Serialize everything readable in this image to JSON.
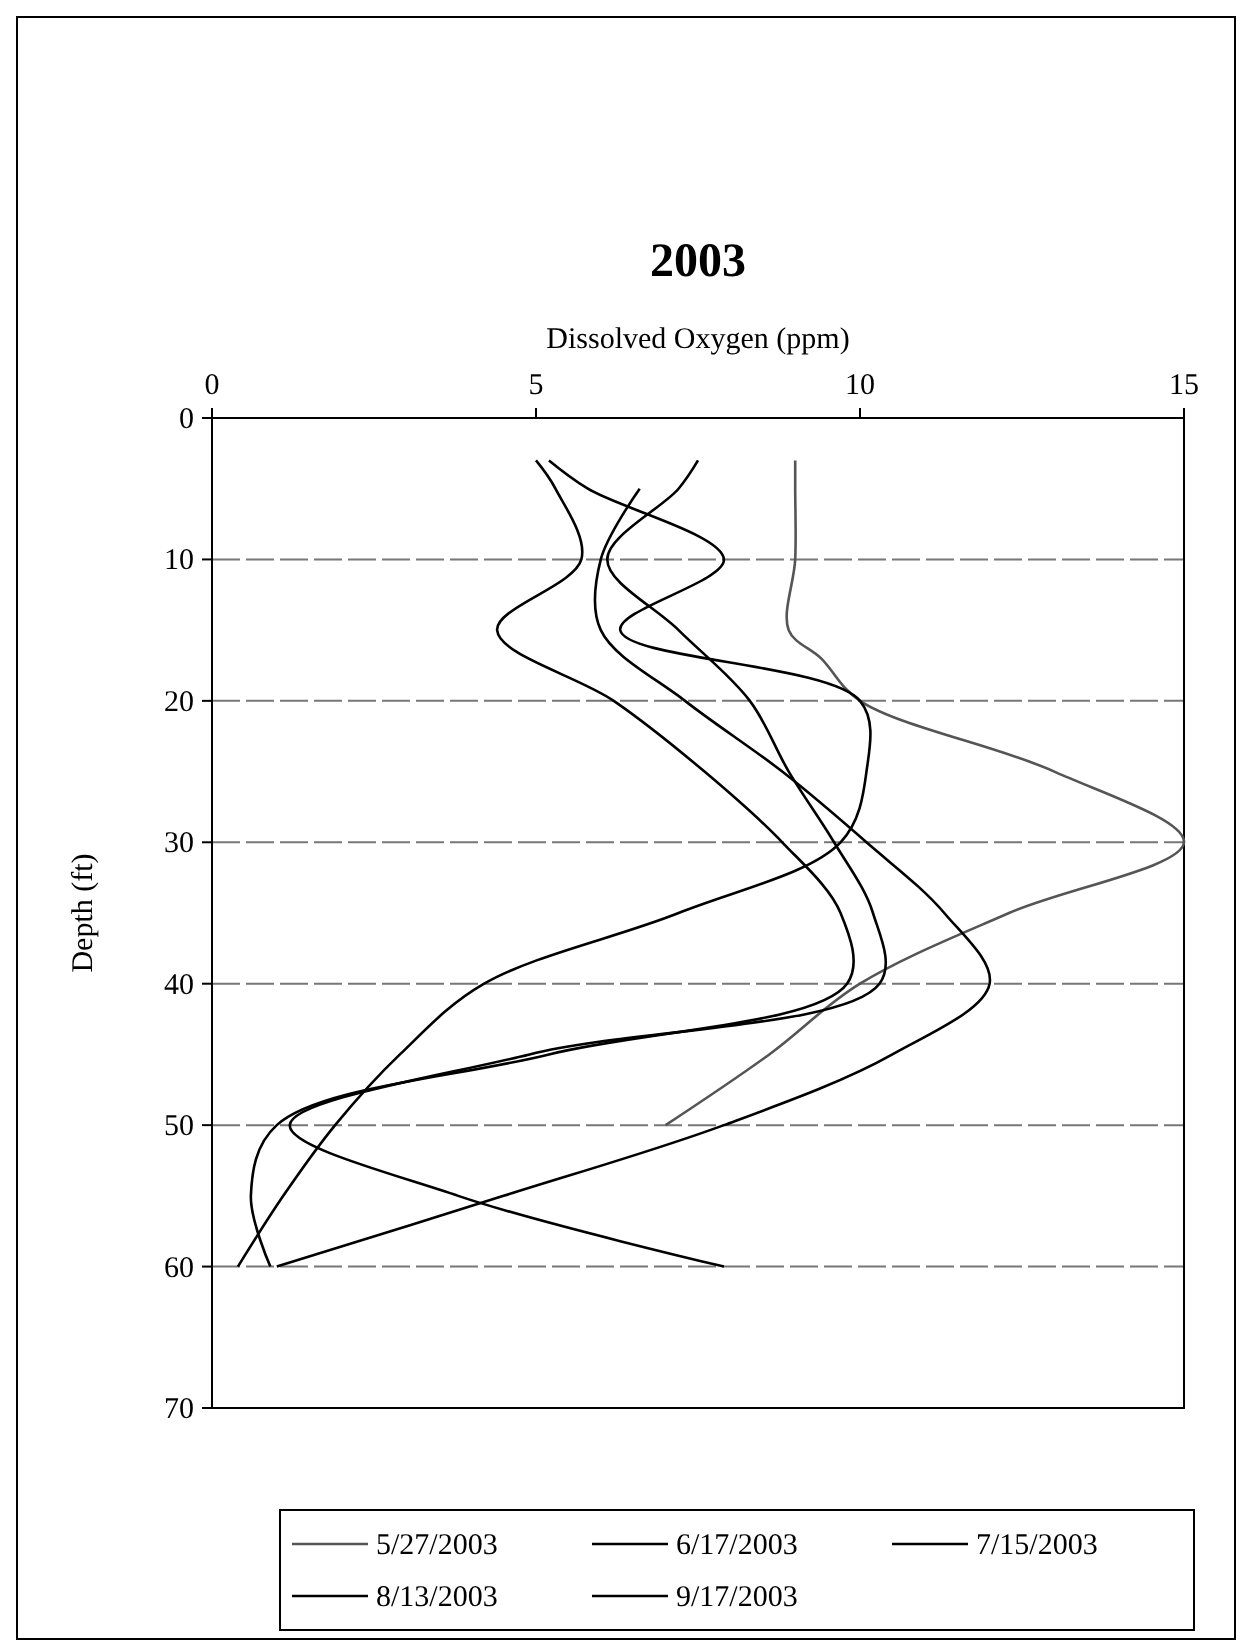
{
  "chart_data": {
    "type": "line",
    "title": "2003",
    "xlabel": "Dissolved Oxygen (ppm)",
    "ylabel": "Depth (ft)",
    "xlim": [
      0,
      15
    ],
    "xticks": [
      0,
      5,
      10,
      15
    ],
    "ylim": [
      70,
      0
    ],
    "yticks": [
      0,
      10,
      20,
      30,
      40,
      50,
      60,
      70
    ],
    "grid": "y",
    "legend": "bottom",
    "marker": "none",
    "line_style": "solid",
    "series": [
      {
        "name": "5/27/2003",
        "color": "#555555",
        "x": [
          9.0,
          9.0,
          9.0,
          8.9,
          9.4,
          10.0,
          13.0,
          15.0,
          12.3,
          10.0,
          8.6,
          7.0
        ],
        "values": [
          3,
          5,
          10,
          15,
          17,
          20,
          25,
          30,
          35,
          40,
          45,
          50
        ]
      },
      {
        "name": "6/17/2003",
        "color": "#000000",
        "x": [
          5.0,
          5.3,
          5.7,
          4.4,
          6.2,
          7.6,
          8.8,
          9.7,
          9.8,
          5.2,
          1.0,
          0.6,
          0.9
        ],
        "values": [
          3,
          5,
          10,
          15,
          20,
          25,
          30,
          35,
          40,
          45,
          50,
          55,
          60
        ]
      },
      {
        "name": "7/15/2003",
        "color": "#000000",
        "x": [
          7.5,
          7.2,
          6.1,
          7.2,
          8.3,
          8.9,
          9.6,
          10.2,
          10.3,
          4.9,
          1.2,
          3.8,
          7.9
        ],
        "values": [
          3,
          5,
          10,
          15,
          20,
          25,
          30,
          35,
          40,
          45,
          50,
          55,
          60
        ]
      },
      {
        "name": "8/13/2003",
        "color": "#000000",
        "x": [
          6.6,
          6.0,
          6.0,
          7.3,
          8.8,
          10.1,
          11.3,
          12.0,
          10.5,
          7.9,
          4.5,
          1.0
        ],
        "values": [
          5,
          10,
          15,
          20,
          25,
          30,
          35,
          40,
          45,
          50,
          55,
          60
        ]
      },
      {
        "name": "9/17/2003",
        "color": "#000000",
        "x": [
          5.2,
          5.8,
          7.9,
          6.3,
          10.0,
          10.1,
          9.7,
          7.2,
          4.2,
          2.9,
          1.9,
          1.1,
          0.4
        ],
        "values": [
          3,
          5,
          10,
          15,
          20,
          25,
          30,
          35,
          40,
          45,
          50,
          55,
          60
        ]
      }
    ]
  }
}
